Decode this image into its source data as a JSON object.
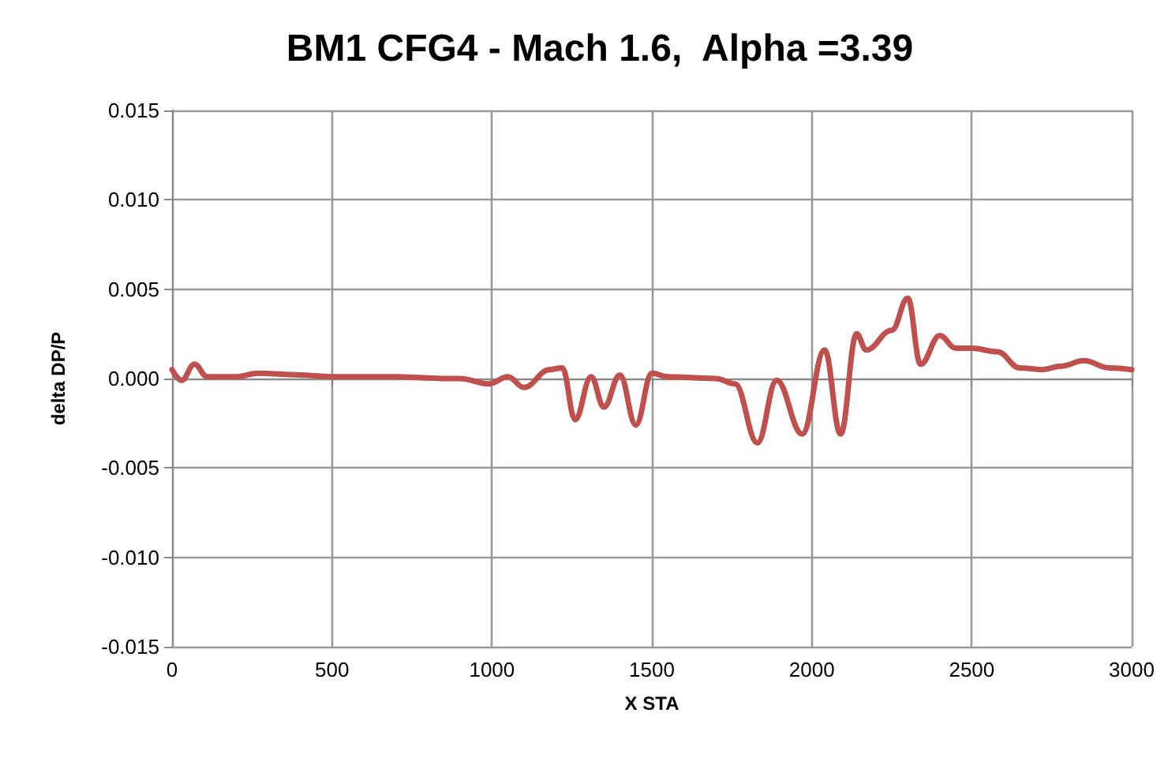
{
  "chart_data": {
    "type": "line",
    "title": "BM1 CFG4 - Mach 1.6,  Alpha =3.39",
    "xlabel": "X STA",
    "ylabel": "delta DP/P",
    "x": [
      0,
      30,
      70,
      110,
      200,
      270,
      400,
      500,
      700,
      850,
      900,
      990,
      1050,
      1100,
      1180,
      1220,
      1260,
      1310,
      1350,
      1400,
      1450,
      1500,
      1550,
      1700,
      1760,
      1830,
      1890,
      1970,
      2040,
      2090,
      2140,
      2170,
      2250,
      2300,
      2340,
      2400,
      2450,
      2500,
      2580,
      2650,
      2720,
      2780,
      2850,
      2930,
      3000
    ],
    "series": [
      {
        "color": "#c0504d",
        "values": [
          0.0005,
          -0.0001,
          0.0008,
          0.0001,
          0.0001,
          0.0003,
          0.0002,
          0.0001,
          0.0001,
          0,
          0,
          -0.0003,
          0.0001,
          -0.0005,
          0.0005,
          0.0006,
          -0.0023,
          0.0001,
          -0.0016,
          0.0002,
          -0.0026,
          0.0003,
          0.0001,
          0,
          -0.0003,
          -0.0036,
          -0.0001,
          -0.0031,
          0.0016,
          -0.0031,
          0.0025,
          0.0016,
          0.0027,
          0.0045,
          0.0008,
          0.0024,
          0.0017,
          0.0017,
          0.0015,
          0.0006,
          0.0005,
          0.0007,
          0.001,
          0.0006,
          0.0005
        ]
      }
    ],
    "xlim": [
      0,
      3000
    ],
    "xticks": [
      0,
      500,
      1000,
      1500,
      2000,
      2500,
      3000
    ],
    "ylim": [
      -0.015,
      0.015
    ],
    "yticks": [
      {
        "value": -0.015,
        "label": "-0.015"
      },
      {
        "value": -0.01,
        "label": "-0.010"
      },
      {
        "value": -0.005,
        "label": "-0.005"
      },
      {
        "value": 0,
        "label": "0.000"
      },
      {
        "value": 0.005,
        "label": "0.005"
      },
      {
        "value": 0.01,
        "label": "0.010"
      },
      {
        "value": 0.015,
        "label": "0.015"
      }
    ],
    "grid": true,
    "marker": "none",
    "line_style": "solid"
  }
}
